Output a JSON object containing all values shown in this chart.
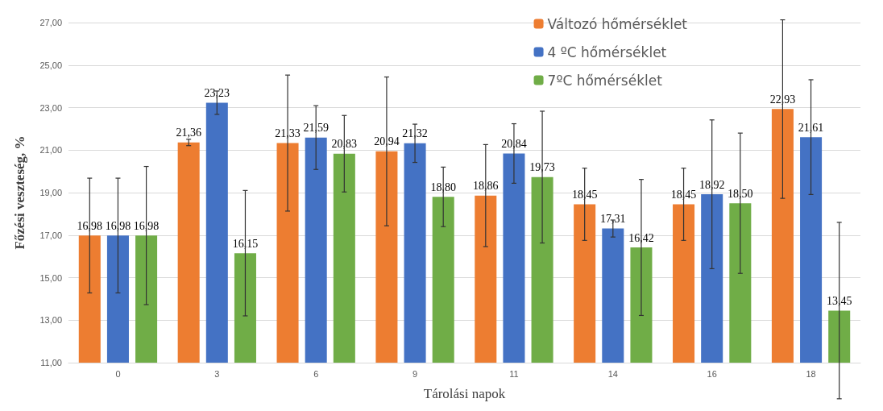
{
  "chart_data": {
    "type": "bar",
    "xlabel": "Tárolási napok",
    "ylabel": "Főzési veszteség, %",
    "categories": [
      "0",
      "3",
      "6",
      "9",
      "11",
      "14",
      "16",
      "18"
    ],
    "series": [
      {
        "name": "Változó hőmérséklet",
        "color": "#ed7d31",
        "values": [
          16.98,
          21.36,
          21.33,
          20.94,
          18.86,
          18.45,
          18.45,
          22.93
        ],
        "errors": [
          2.7,
          0.15,
          3.2,
          3.5,
          2.4,
          1.7,
          1.7,
          4.2
        ],
        "value_labels": [
          "16,98",
          "21,36",
          "21,33",
          "20,94",
          "18,86",
          "18,45",
          "18,45",
          "22,93"
        ]
      },
      {
        "name": "4 ºC hőmérséklet",
        "color": "#4472c4",
        "values": [
          16.98,
          23.23,
          21.59,
          21.32,
          20.84,
          17.31,
          18.92,
          21.61
        ],
        "errors": [
          2.7,
          0.55,
          1.5,
          0.9,
          1.4,
          0.4,
          3.5,
          2.7
        ],
        "value_labels": [
          "16,98",
          "23,23",
          "21,59",
          "21,32",
          "20,84",
          "17,31",
          "18,92",
          "21,61"
        ]
      },
      {
        "name": "7ºC hőmérséklet",
        "color": "#70ad47",
        "values": [
          16.98,
          16.15,
          20.83,
          18.8,
          19.73,
          16.42,
          18.5,
          13.45
        ],
        "errors": [
          3.25,
          2.95,
          1.8,
          1.4,
          3.1,
          3.2,
          3.3,
          4.15
        ],
        "value_labels": [
          "16,98",
          "16,15",
          "20,83",
          "18,80",
          "19,73",
          "16,42",
          "18,50",
          "13,45"
        ]
      }
    ],
    "ylim": [
      11,
      27
    ],
    "yticks": [
      {
        "value": 11,
        "label": "11,00"
      },
      {
        "value": 13,
        "label": "13,00"
      },
      {
        "value": 15,
        "label": "15,00"
      },
      {
        "value": 17,
        "label": "17,00"
      },
      {
        "value": 19,
        "label": "19,00"
      },
      {
        "value": 21,
        "label": "21,00"
      },
      {
        "value": 23,
        "label": "23,00"
      },
      {
        "value": 25,
        "label": "25,00"
      },
      {
        "value": 27,
        "label": "27,00"
      }
    ],
    "grid": "y",
    "legend": "top right"
  }
}
